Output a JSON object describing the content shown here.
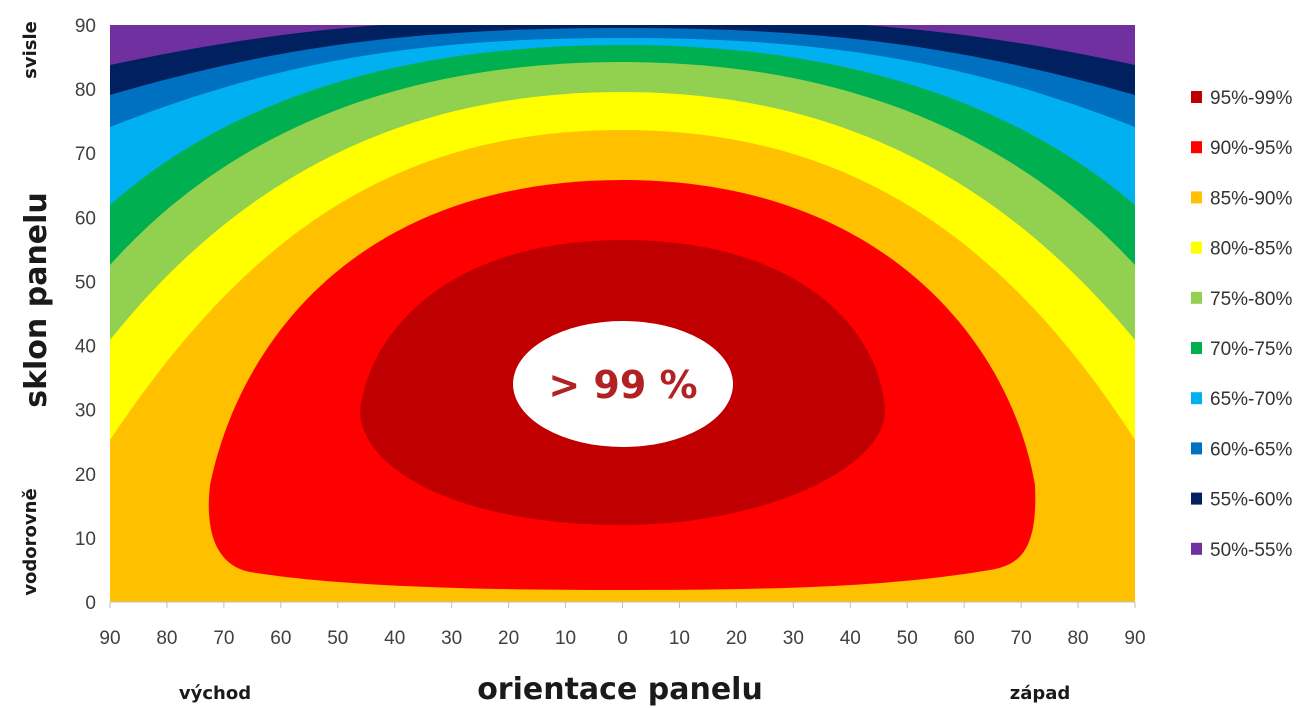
{
  "chart_data": {
    "type": "heatmap",
    "title": "",
    "xlabel": "orientace panelu",
    "ylabel": "sklon panelu",
    "x_ticks": [
      "90",
      "80",
      "70",
      "60",
      "50",
      "40",
      "30",
      "20",
      "10",
      "0",
      "10",
      "20",
      "30",
      "40",
      "50",
      "60",
      "70",
      "80",
      "90"
    ],
    "y_ticks": [
      "0",
      "10",
      "20",
      "30",
      "40",
      "50",
      "60",
      "70",
      "80",
      "90"
    ],
    "x_range": [
      -90,
      90
    ],
    "y_range": [
      0,
      90
    ],
    "x_side_labels": {
      "left": "východ",
      "right": "západ"
    },
    "y_side_labels": {
      "top": "svisle",
      "bottom": "vodorovně"
    },
    "peak_label": "> 99 %",
    "bands": [
      {
        "name": "95%-99%",
        "color": "#c00000"
      },
      {
        "name": "90%-95%",
        "color": "#ff0000"
      },
      {
        "name": "85%-90%",
        "color": "#ffc000"
      },
      {
        "name": "80%-85%",
        "color": "#ffff00"
      },
      {
        "name": "75%-80%",
        "color": "#92d050"
      },
      {
        "name": "70%-75%",
        "color": "#00b050"
      },
      {
        "name": "65%-70%",
        "color": "#00b0f0"
      },
      {
        "name": "60%-65%",
        "color": "#0070c0"
      },
      {
        "name": "55%-60%",
        "color": "#002060"
      },
      {
        "name": "50%-55%",
        "color": "#7030a0"
      }
    ],
    "legend_position": "right"
  }
}
